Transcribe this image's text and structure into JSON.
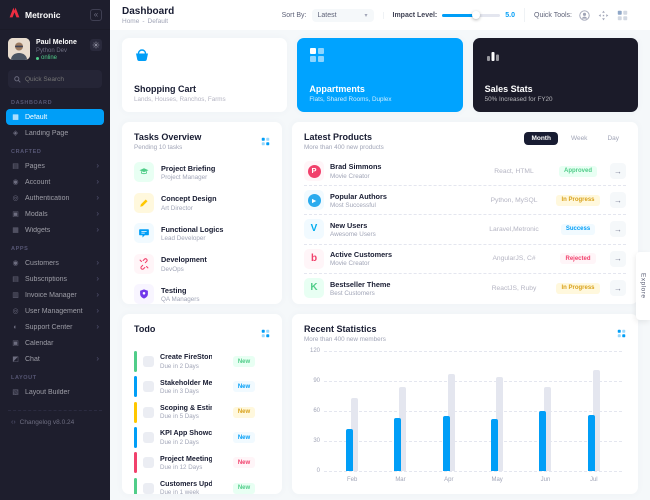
{
  "app": {
    "brand": "Metronic"
  },
  "colors": {
    "accent": "#009EF7",
    "green": "#50CD89",
    "yellow": "#FFC700",
    "red": "#F1416C",
    "purple": "#7239EA",
    "dark_card": "#1B1B29",
    "primary_card": "#00A3FF",
    "sidebar": "#1E1E2D",
    "background": "#F5F8FA",
    "gray_bar": "#E4E6EF"
  },
  "sidebar": {
    "profile": {
      "name": "Paul Melone",
      "role": "Python Dev",
      "status": "online"
    },
    "search": {
      "placeholder": "Quick Search"
    },
    "sections": [
      {
        "label": "DASHBOARD",
        "items": [
          {
            "label": "Default",
            "glyph": "▦",
            "active": true
          },
          {
            "label": "Landing Page",
            "glyph": "◈"
          }
        ]
      },
      {
        "label": "CRAFTED",
        "items": [
          {
            "label": "Pages",
            "glyph": "▤",
            "chevron": true
          },
          {
            "label": "Account",
            "glyph": "◉",
            "chevron": true
          },
          {
            "label": "Authentication",
            "glyph": "◎",
            "chevron": true
          },
          {
            "label": "Modals",
            "glyph": "▣",
            "chevron": true
          },
          {
            "label": "Widgets",
            "glyph": "▦",
            "chevron": true
          }
        ]
      },
      {
        "label": "APPS",
        "items": [
          {
            "label": "Customers",
            "glyph": "◉",
            "chevron": true
          },
          {
            "label": "Subscriptions",
            "glyph": "▤",
            "chevron": true
          },
          {
            "label": "Invoice Manager",
            "glyph": "▥",
            "chevron": true
          },
          {
            "label": "User Management",
            "glyph": "◎",
            "chevron": true
          },
          {
            "label": "Support Center",
            "glyph": "◐",
            "chevron": true
          },
          {
            "label": "Calendar",
            "glyph": "▣"
          },
          {
            "label": "Chat",
            "glyph": "◩",
            "chevron": true
          }
        ]
      },
      {
        "label": "LAYOUT",
        "items": [
          {
            "label": "Layout Builder",
            "glyph": "▧"
          }
        ]
      }
    ],
    "changelog": "Changelog v8.0.24"
  },
  "header": {
    "title": "Dashboard",
    "breadcrumb": {
      "home": "Home",
      "sep": "-",
      "current": "Default"
    },
    "sort": {
      "label": "Sort By:",
      "value": "Latest"
    },
    "impact": {
      "label": "Impact Level:",
      "value": "5.0",
      "percent": 58
    },
    "tools": {
      "label": "Quick Tools:"
    }
  },
  "summary_cards": [
    {
      "title": "Shopping Cart",
      "subtitle": "Lands, Houses, Ranchos, Farms",
      "variant": "light",
      "icon": "shopping-basket-icon"
    },
    {
      "title": "Appartments",
      "subtitle": "Flats, Shared Rooms, Duplex",
      "variant": "primary",
      "icon": "squares-grid-icon"
    },
    {
      "title": "Sales Stats",
      "subtitle": "50% Increased for FY20",
      "variant": "dark",
      "icon": "bar-chart-icon"
    }
  ],
  "tasks_overview": {
    "title": "Tasks Overview",
    "subtitle": "Pending 10 tasks",
    "items": [
      {
        "title": "Project Briefing",
        "subtitle": "Project Manager",
        "color": "green",
        "icon": "graduation-cap-icon"
      },
      {
        "title": "Concept Design",
        "subtitle": "Art Director",
        "color": "yellow",
        "icon": "pencil-icon"
      },
      {
        "title": "Functional Logics",
        "subtitle": "Lead Developer",
        "color": "blue",
        "icon": "chat-bubble-icon"
      },
      {
        "title": "Development",
        "subtitle": "DevOps",
        "color": "red",
        "icon": "broken-link-icon"
      },
      {
        "title": "Testing",
        "subtitle": "QA Managers",
        "color": "purple",
        "icon": "shield-icon"
      }
    ]
  },
  "latest_products": {
    "title": "Latest Products",
    "subtitle": "More than 400 new products",
    "tabs": [
      {
        "label": "Month",
        "active": true
      },
      {
        "label": "Week"
      },
      {
        "label": "Day"
      }
    ],
    "rows": [
      {
        "name": "Brad Simmons",
        "role": "Movie Creator",
        "tech": "React, HTML",
        "status": "Approved",
        "status_color": "green",
        "brand": {
          "icon": "product-hunt-icon",
          "glyph": "P",
          "style": "circle",
          "bg": "#FFF5F8",
          "fg": "#FFFFFF",
          "circle": "#F1416C"
        }
      },
      {
        "name": "Popular Authors",
        "role": "Most Successful",
        "tech": "Python, MySQL",
        "status": "In Progress",
        "status_color": "yellow",
        "brand": {
          "icon": "telegram-icon",
          "glyph": "▸",
          "style": "circle",
          "bg": "#F1FAFF",
          "fg": "#FFFFFF",
          "circle": "#2AABEE"
        }
      },
      {
        "name": "New Users",
        "role": "Awesome Users",
        "tech": "Laravel,Metronic",
        "status": "Success",
        "status_color": "blue",
        "brand": {
          "icon": "vimeo-icon",
          "glyph": "V",
          "style": "letter",
          "bg": "#F1FAFF",
          "fg": "#00ADEF"
        }
      },
      {
        "name": "Active Customers",
        "role": "Movie Creator",
        "tech": "AngularJS, C#",
        "status": "Rejected",
        "status_color": "red",
        "brand": {
          "icon": "bing-icon",
          "glyph": "b",
          "style": "letter",
          "bg": "#FFF5F8",
          "fg": "#F1416C"
        }
      },
      {
        "name": "Bestseller Theme",
        "role": "Best Customers",
        "tech": "ReactJS, Ruby",
        "status": "In Progress",
        "status_color": "yellow",
        "brand": {
          "icon": "kickstarter-icon",
          "glyph": "K",
          "style": "letter",
          "bg": "#E8FFF3",
          "fg": "#50CD89"
        }
      }
    ]
  },
  "todo": {
    "title": "Todo",
    "items": [
      {
        "title": "Create FireStone Logo",
        "due": "Due in 2 Days",
        "badge": "New",
        "color": "green"
      },
      {
        "title": "Stakeholder Meeting",
        "due": "Due in 3 Days",
        "badge": "New",
        "color": "blue"
      },
      {
        "title": "Scoping & Estimations",
        "due": "Due in 5 Days",
        "badge": "New",
        "color": "yellow"
      },
      {
        "title": "KPI App Showcase",
        "due": "Due in 2 Days",
        "badge": "New",
        "color": "blue"
      },
      {
        "title": "Project Meeting",
        "due": "Due in 12 Days",
        "badge": "New",
        "color": "red"
      },
      {
        "title": "Customers Update",
        "due": "Due in 1 week",
        "badge": "New",
        "color": "green"
      }
    ]
  },
  "recent_statistics": {
    "title": "Recent Statistics",
    "subtitle": "More than 400 new members"
  },
  "chart_data": {
    "type": "bar",
    "title": "Recent Statistics",
    "subtitle": "More than 400 new members",
    "categories": [
      "Feb",
      "Mar",
      "Apr",
      "May",
      "Jun",
      "Jul"
    ],
    "series": [
      {
        "name": "primary",
        "color": "#009EF7",
        "values": [
          42,
          53,
          55,
          52,
          60,
          56
        ]
      },
      {
        "name": "secondary",
        "color": "#E4E6EF",
        "values": [
          73,
          84,
          97,
          94,
          84,
          101
        ]
      }
    ],
    "ylim": [
      0,
      120
    ],
    "yticks": [
      0,
      30,
      60,
      90,
      120
    ],
    "grid": "horizontal-dashed",
    "legend": "none"
  },
  "explore": {
    "label": "Explore"
  }
}
